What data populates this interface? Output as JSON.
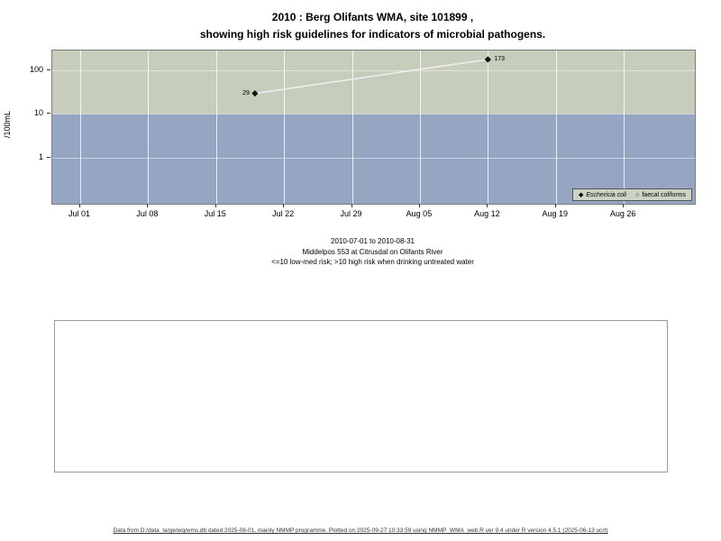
{
  "page": {
    "footer": "Data from D:/data_large/wq/wms.db dated 2025-08-01, mainly NMMP programme. Plotted on 2025-09-27 10:33:59 using NMMP_WMA_web.R ver 9.4 under R version 4.5.1 (2025-06-13 ucrt)"
  },
  "chart_data": {
    "type": "scatter",
    "title_line1": "2010 : Berg Olifants WMA, site 101899 ,",
    "title_line2": "showing high risk guidelines for indicators of microbial pathogens.",
    "ylabel": "/100mL",
    "y_scale": "log10",
    "y_ticks": [
      1,
      10,
      100
    ],
    "y_range_approx": [
      0.3,
      280
    ],
    "x_start": "2010-07-01",
    "x_end": "2010-08-31",
    "x_ticks": [
      {
        "date": "2010-07-01",
        "label": "Jul 01"
      },
      {
        "date": "2010-07-08",
        "label": "Jul 08"
      },
      {
        "date": "2010-07-15",
        "label": "Jul 15"
      },
      {
        "date": "2010-07-22",
        "label": "Jul 22"
      },
      {
        "date": "2010-07-29",
        "label": "Jul 29"
      },
      {
        "date": "2010-08-05",
        "label": "Aug 05"
      },
      {
        "date": "2010-08-12",
        "label": "Aug 12"
      },
      {
        "date": "2010-08-19",
        "label": "Aug 19"
      },
      {
        "date": "2010-08-26",
        "label": "Aug 26"
      }
    ],
    "risk_threshold": 10,
    "colors": {
      "high_risk_band": "#c6cdba",
      "low_risk_band": "#96a5c2",
      "trend_line": "#f0f0f0",
      "marker": "#111111"
    },
    "series": [
      {
        "name": "Eschericia coli",
        "marker": "filled-diamond",
        "points": [
          {
            "date": "2010-07-19",
            "value": 29,
            "label": "29",
            "label_side": "left"
          },
          {
            "date": "2010-08-12",
            "value": 173,
            "label": "173",
            "label_side": "right"
          }
        ]
      },
      {
        "name": "faecal coliforms",
        "marker": "open-circle",
        "points": []
      }
    ],
    "caption": {
      "range": "2010-07-01 to 2010-08-31",
      "station": "Middelpos 553 at Citrusdal on Olifants River",
      "note": "<=10 low-med risk; >10 high risk when drinking untreated water"
    },
    "legend_position": "bottom-right",
    "grid": "vertical-white-weekly"
  }
}
